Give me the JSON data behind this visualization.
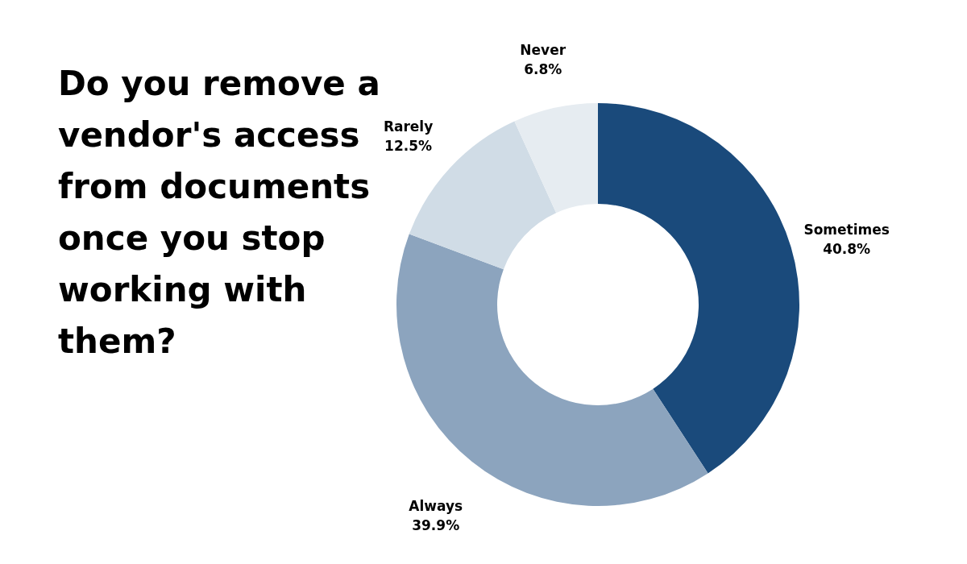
{
  "chart_data": {
    "type": "donut",
    "title": "Do you remove a vendor's access from documents once you stop working with them?",
    "categories": [
      "Sometimes",
      "Always",
      "Rarely",
      "Never"
    ],
    "values": [
      40.8,
      39.9,
      12.5,
      6.8
    ],
    "colors": [
      "#1a4a7b",
      "#8ca4be",
      "#d0dce6",
      "#e6ecf1"
    ],
    "value_labels": [
      "40.8%",
      "39.9%",
      "12.5%",
      "6.8%"
    ],
    "legend": false
  }
}
